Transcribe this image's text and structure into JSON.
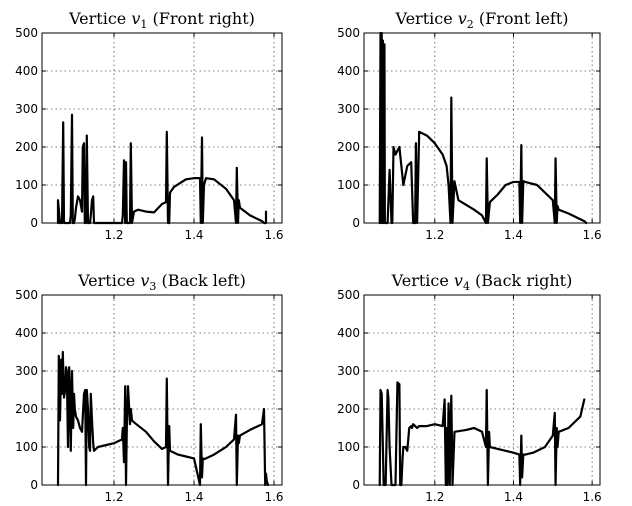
{
  "chart_data": [
    {
      "type": "line",
      "title": "Vertice v1 (Front right)",
      "title_prefix": "Vertice ",
      "title_var": "v",
      "title_sub": "1",
      "title_suffix": " (Front right)",
      "xlim": [
        1.02,
        1.62
      ],
      "ylim": [
        0,
        500
      ],
      "xticks": [
        1.2,
        1.4,
        1.6
      ],
      "xtick_labels": [
        "1.2",
        "1.4",
        "1.6"
      ],
      "yticks": [
        0,
        100,
        200,
        300,
        400,
        500
      ],
      "ytick_labels": [
        "0",
        "100",
        "200",
        "300",
        "400",
        "500"
      ],
      "grid": true,
      "series": [
        {
          "x": [
            1.06,
            1.06,
            1.06,
            1.065,
            1.07,
            1.073,
            1.075,
            1.078,
            1.08,
            1.08,
            1.09,
            1.092,
            1.095,
            1.097,
            1.1,
            1.1,
            1.102,
            1.105,
            1.11,
            1.115,
            1.12,
            1.122,
            1.125,
            1.127,
            1.13,
            1.132,
            1.135,
            1.138,
            1.14,
            1.142,
            1.145,
            1.148,
            1.15,
            1.152,
            1.155,
            1.16,
            1.16,
            1.22,
            1.222,
            1.225,
            1.228,
            1.23,
            1.232,
            1.235,
            1.24,
            1.24,
            1.242,
            1.245,
            1.25,
            1.26,
            1.28,
            1.3,
            1.32,
            1.33,
            1.332,
            1.335,
            1.338,
            1.34,
            1.35,
            1.38,
            1.4,
            1.415,
            1.417,
            1.42,
            1.422,
            1.425,
            1.43,
            1.45,
            1.48,
            1.5,
            1.505,
            1.507,
            1.51,
            1.512,
            1.515,
            1.54,
            1.57,
            1.575,
            1.58,
            1.58
          ],
          "y": [
            0,
            0,
            60,
            0,
            0,
            265,
            0,
            0,
            0,
            0,
            0,
            20,
            285,
            0,
            0,
            0,
            10,
            40,
            70,
            60,
            30,
            200,
            210,
            0,
            0,
            230,
            0,
            0,
            0,
            20,
            60,
            70,
            0,
            0,
            0,
            0,
            0,
            0,
            20,
            165,
            0,
            160,
            0,
            0,
            0,
            0,
            210,
            0,
            30,
            35,
            30,
            28,
            50,
            55,
            240,
            0,
            0,
            80,
            95,
            115,
            118,
            118,
            0,
            225,
            0,
            100,
            118,
            115,
            90,
            60,
            0,
            145,
            0,
            60,
            40,
            20,
            5,
            0,
            0,
            30
          ]
        }
      ]
    },
    {
      "type": "line",
      "title": "Vertice v2 (Front left)",
      "title_prefix": "Vertice ",
      "title_var": "v",
      "title_sub": "2",
      "title_suffix": " (Front left)",
      "xlim": [
        1.02,
        1.62
      ],
      "ylim": [
        0,
        500
      ],
      "xticks": [
        1.2,
        1.4,
        1.6
      ],
      "xtick_labels": [
        "1.2",
        "1.4",
        "1.6"
      ],
      "yticks": [
        0,
        100,
        200,
        300,
        400,
        500
      ],
      "ytick_labels": [
        "0",
        "100",
        "200",
        "300",
        "400",
        "500"
      ],
      "grid": true,
      "series": [
        {
          "x": [
            1.06,
            1.06,
            1.062,
            1.063,
            1.065,
            1.067,
            1.068,
            1.07,
            1.072,
            1.073,
            1.075,
            1.078,
            1.08,
            1.085,
            1.09,
            1.092,
            1.095,
            1.1,
            1.105,
            1.11,
            1.12,
            1.13,
            1.14,
            1.145,
            1.15,
            1.152,
            1.155,
            1.16,
            1.16,
            1.18,
            1.2,
            1.22,
            1.23,
            1.235,
            1.24,
            1.242,
            1.245,
            1.25,
            1.26,
            1.3,
            1.32,
            1.33,
            1.332,
            1.335,
            1.34,
            1.36,
            1.38,
            1.4,
            1.415,
            1.417,
            1.42,
            1.422,
            1.425,
            1.43,
            1.46,
            1.5,
            1.505,
            1.507,
            1.51,
            1.512,
            1.515,
            1.54,
            1.57,
            1.58,
            1.585
          ],
          "y": [
            0,
            0,
            500,
            0,
            500,
            0,
            480,
            0,
            470,
            0,
            0,
            0,
            0,
            140,
            0,
            0,
            200,
            180,
            190,
            200,
            100,
            150,
            160,
            0,
            0,
            210,
            0,
            225,
            240,
            230,
            210,
            180,
            150,
            100,
            0,
            330,
            0,
            110,
            60,
            35,
            20,
            0,
            170,
            0,
            55,
            75,
            100,
            108,
            108,
            0,
            205,
            0,
            110,
            108,
            100,
            60,
            0,
            170,
            0,
            45,
            35,
            25,
            10,
            5,
            0
          ]
        }
      ]
    },
    {
      "type": "line",
      "title": "Vertice v3 (Back left)",
      "title_prefix": "Vertice ",
      "title_var": "v",
      "title_sub": "3",
      "title_suffix": " (Back left)",
      "xlim": [
        1.02,
        1.62
      ],
      "ylim": [
        0,
        500
      ],
      "xticks": [
        1.2,
        1.4,
        1.6
      ],
      "xtick_labels": [
        "1.2",
        "1.4",
        "1.6"
      ],
      "yticks": [
        0,
        100,
        200,
        300,
        400,
        500
      ],
      "ytick_labels": [
        "0",
        "100",
        "200",
        "300",
        "400",
        "500"
      ],
      "grid": true,
      "series": [
        {
          "x": [
            1.06,
            1.06,
            1.062,
            1.065,
            1.068,
            1.07,
            1.072,
            1.075,
            1.078,
            1.08,
            1.082,
            1.085,
            1.088,
            1.09,
            1.092,
            1.095,
            1.098,
            1.1,
            1.102,
            1.105,
            1.11,
            1.115,
            1.12,
            1.125,
            1.128,
            1.13,
            1.132,
            1.135,
            1.138,
            1.14,
            1.142,
            1.145,
            1.148,
            1.15,
            1.16,
            1.2,
            1.22,
            1.222,
            1.225,
            1.228,
            1.23,
            1.232,
            1.235,
            1.24,
            1.242,
            1.245,
            1.25,
            1.28,
            1.3,
            1.32,
            1.33,
            1.332,
            1.335,
            1.338,
            1.34,
            1.36,
            1.38,
            1.4,
            1.415,
            1.417,
            1.42,
            1.422,
            1.425,
            1.43,
            1.45,
            1.48,
            1.5,
            1.505,
            1.507,
            1.51,
            1.512,
            1.515,
            1.54,
            1.57,
            1.575,
            1.578,
            1.58,
            1.582,
            1.585
          ],
          "y": [
            0,
            0,
            340,
            170,
            330,
            240,
            350,
            230,
            250,
            310,
            300,
            100,
            310,
            240,
            90,
            300,
            150,
            240,
            200,
            180,
            170,
            150,
            140,
            240,
            250,
            0,
            250,
            200,
            100,
            90,
            240,
            170,
            110,
            90,
            100,
            110,
            120,
            150,
            60,
            260,
            0,
            150,
            260,
            160,
            200,
            170,
            165,
            140,
            115,
            95,
            100,
            280,
            0,
            155,
            90,
            80,
            75,
            70,
            0,
            160,
            20,
            70,
            68,
            70,
            80,
            100,
            120,
            185,
            0,
            130,
            110,
            130,
            145,
            160,
            200,
            0,
            30,
            10,
            0
          ]
        }
      ]
    },
    {
      "type": "line",
      "title": "Vertice v4 (Back right)",
      "title_prefix": "Vertice ",
      "title_var": "v",
      "title_sub": "4",
      "title_suffix": " (Back right)",
      "xlim": [
        1.02,
        1.62
      ],
      "ylim": [
        0,
        500
      ],
      "xticks": [
        1.2,
        1.4,
        1.6
      ],
      "xtick_labels": [
        "1.2",
        "1.4",
        "1.6"
      ],
      "yticks": [
        0,
        100,
        200,
        300,
        400,
        500
      ],
      "ytick_labels": [
        "0",
        "100",
        "200",
        "300",
        "400",
        "500"
      ],
      "grid": true,
      "series": [
        {
          "x": [
            1.06,
            1.062,
            1.065,
            1.068,
            1.07,
            1.075,
            1.08,
            1.082,
            1.085,
            1.09,
            1.1,
            1.105,
            1.11,
            1.112,
            1.115,
            1.118,
            1.12,
            1.125,
            1.13,
            1.135,
            1.14,
            1.142,
            1.145,
            1.15,
            1.155,
            1.16,
            1.18,
            1.2,
            1.22,
            1.225,
            1.228,
            1.23,
            1.232,
            1.235,
            1.238,
            1.24,
            1.242,
            1.245,
            1.25,
            1.28,
            1.3,
            1.32,
            1.33,
            1.332,
            1.335,
            1.338,
            1.34,
            1.36,
            1.38,
            1.4,
            1.415,
            1.417,
            1.42,
            1.422,
            1.425,
            1.43,
            1.45,
            1.48,
            1.5,
            1.505,
            1.507,
            1.51,
            1.512,
            1.515,
            1.54,
            1.57,
            1.58
          ],
          "y": [
            0,
            250,
            240,
            100,
            0,
            0,
            250,
            230,
            100,
            0,
            0,
            270,
            265,
            0,
            0,
            70,
            100,
            100,
            90,
            150,
            155,
            150,
            160,
            155,
            150,
            155,
            155,
            160,
            155,
            225,
            0,
            150,
            0,
            215,
            0,
            150,
            235,
            0,
            140,
            145,
            150,
            140,
            100,
            250,
            0,
            140,
            100,
            95,
            90,
            85,
            80,
            0,
            130,
            20,
            80,
            80,
            85,
            100,
            130,
            190,
            0,
            150,
            100,
            140,
            150,
            180,
            225
          ]
        }
      ]
    }
  ]
}
